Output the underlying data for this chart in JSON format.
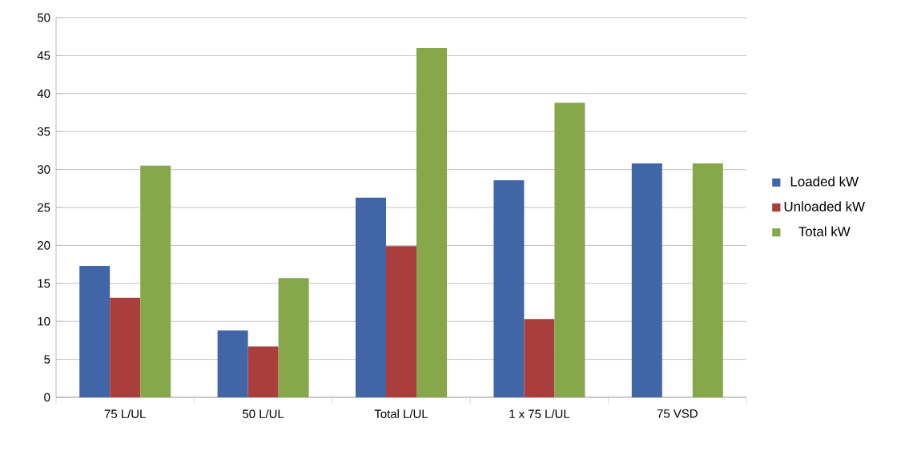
{
  "chart_data": {
    "type": "bar",
    "categories": [
      "75 L/UL",
      "50 L/UL",
      "Total L/UL",
      "1 x 75 L/UL",
      "75 VSD"
    ],
    "series": [
      {
        "name": "Loaded kW",
        "color": "#4066a8",
        "values": [
          17.3,
          8.8,
          26.3,
          28.6,
          30.8
        ]
      },
      {
        "name": "Unloaded kW",
        "color": "#aa3e3c",
        "values": [
          13.1,
          6.7,
          19.9,
          10.3,
          null
        ]
      },
      {
        "name": "Total kW",
        "color": "#86a84a",
        "values": [
          30.5,
          15.7,
          46.0,
          38.8,
          30.8
        ]
      }
    ],
    "ylim": [
      0,
      50
    ],
    "yticks": [
      0,
      5,
      10,
      15,
      20,
      25,
      30,
      35,
      40,
      45,
      50
    ],
    "grid": "y",
    "legend": "right"
  }
}
